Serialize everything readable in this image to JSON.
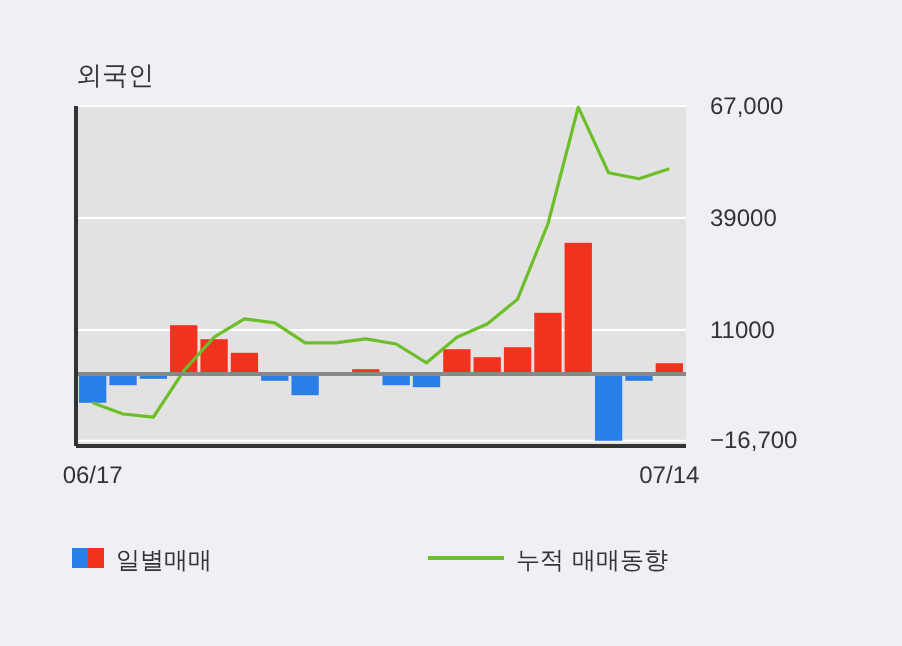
{
  "chart_data": {
    "type": "bar",
    "title": "외국인",
    "categories": [
      "06/17",
      null,
      null,
      null,
      null,
      null,
      null,
      null,
      null,
      null,
      null,
      null,
      null,
      null,
      null,
      null,
      null,
      null,
      null,
      "07/14"
    ],
    "series": [
      {
        "name": "일별매매",
        "colors": [
          "#2a7ee8",
          "#2a7ee8",
          "#2a7ee8",
          "#f0321e",
          "#f0321e",
          "#f0321e",
          "#2a7ee8",
          "#2a7ee8",
          "#f0321e",
          "#f0321e",
          "#2a7ee8",
          "#2a7ee8",
          "#f0321e",
          "#f0321e",
          "#f0321e",
          "#f0321e",
          "#f0321e",
          "#2a7ee8",
          "#2a7ee8",
          "#f0321e"
        ],
        "values": [
          -7200,
          -2800,
          -1200,
          12200,
          8700,
          5300,
          -1700,
          -5300,
          0,
          1200,
          -2800,
          -3300,
          6200,
          4200,
          6700,
          15300,
          32800,
          -16700,
          -1700,
          2700
        ]
      },
      {
        "name": "누적 매매동향",
        "type": "line",
        "color": "#6cbf28",
        "values": [
          -7200,
          -10000,
          -10800,
          800,
          9200,
          13800,
          12800,
          7800,
          7800,
          8800,
          7500,
          2800,
          9200,
          12500,
          18700,
          37500,
          66700,
          50300,
          48800,
          51300
        ]
      }
    ],
    "ylim": [
      -18000,
      67000
    ],
    "yticks": [
      {
        "value": 67000,
        "label": "67,000"
      },
      {
        "value": 39000,
        "label": "39000"
      },
      {
        "value": 11000,
        "label": "11000"
      },
      {
        "value": -16700,
        "label": "−16,700"
      }
    ],
    "grid": "y",
    "legend": "bottom",
    "marker": "none",
    "line_style": "solid"
  }
}
